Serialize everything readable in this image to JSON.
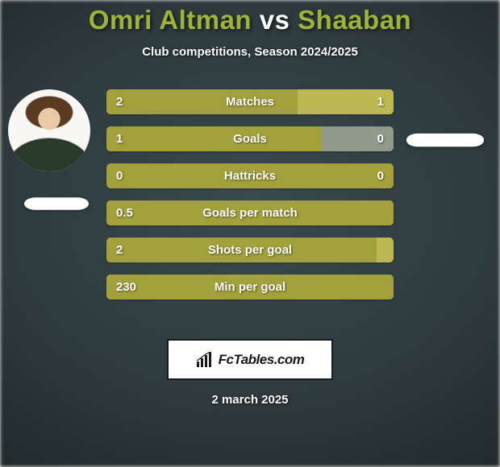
{
  "colors": {
    "accent": "#9fb334",
    "olive_dark": "#a3a13b",
    "olive_light": "#bcb84f",
    "muted_gray": "#8f9a8a",
    "title_accent": "#9fb436",
    "white": "#ffffff",
    "black": "#1a1a1a"
  },
  "header": {
    "player1": "Omri Altman",
    "vs": "vs",
    "player2": "Shaaban",
    "subtitle": "Club competitions, Season 2024/2025"
  },
  "bars": [
    {
      "label": "Matches",
      "left_value": "2",
      "right_value": "1",
      "left_num": 2,
      "right_num": 1,
      "left_fill_pct": 66.7,
      "right_fill_pct": 33.3,
      "bg_color": "#8f9a8a",
      "left_fill_color": "#a3a13b",
      "right_fill_color": "#bcb84f"
    },
    {
      "label": "Goals",
      "left_value": "1",
      "right_value": "0",
      "left_num": 1,
      "right_num": 0,
      "left_fill_pct": 75,
      "right_fill_pct": 0,
      "bg_color": "#8f9a8a",
      "left_fill_color": "#a3a13b",
      "right_fill_color": "#bcb84f"
    },
    {
      "label": "Hattricks",
      "left_value": "0",
      "right_value": "0",
      "left_num": 0,
      "right_num": 0,
      "left_fill_pct": 0,
      "right_fill_pct": 0,
      "bg_color": "#a3a13b",
      "left_fill_color": "#a3a13b",
      "right_fill_color": "#a3a13b"
    },
    {
      "label": "Goals per match",
      "left_value": "0.5",
      "right_value": "",
      "left_num": 0.5,
      "right_num": 0,
      "left_fill_pct": 100,
      "right_fill_pct": 0,
      "bg_color": "#a3a13b",
      "left_fill_color": "#a3a13b",
      "right_fill_color": "#a3a13b"
    },
    {
      "label": "Shots per goal",
      "left_value": "2",
      "right_value": "",
      "left_num": 2,
      "right_num": 0,
      "left_fill_pct": 94,
      "right_fill_pct": 0,
      "bg_color": "#bcb84f",
      "left_fill_color": "#a3a13b",
      "right_fill_color": "#bcb84f"
    },
    {
      "label": "Min per goal",
      "left_value": "230",
      "right_value": "",
      "left_num": 230,
      "right_num": 0,
      "left_fill_pct": 100,
      "right_fill_pct": 0,
      "bg_color": "#a3a13b",
      "left_fill_color": "#a3a13b",
      "right_fill_color": "#a3a13b"
    }
  ],
  "brand": {
    "text": "FcTables.com"
  },
  "footer": {
    "date": "2 march 2025"
  }
}
